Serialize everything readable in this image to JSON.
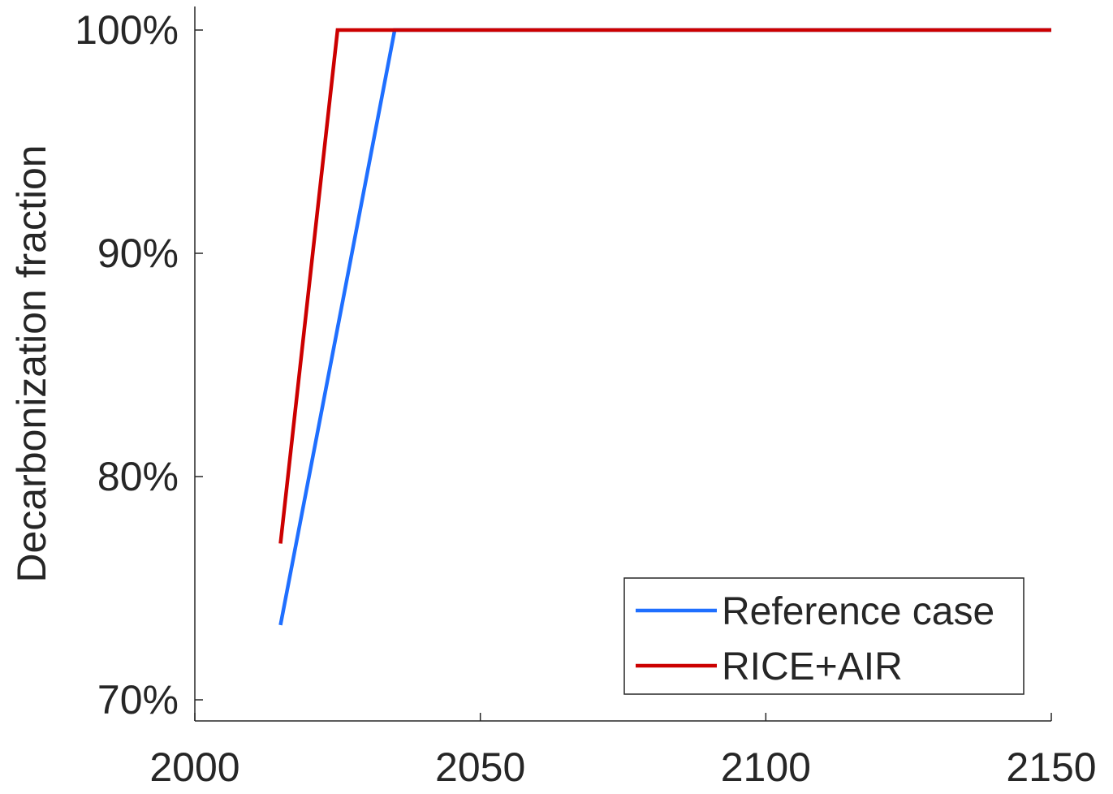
{
  "chart_data": {
    "type": "line",
    "title": "",
    "xlabel": "",
    "ylabel": "Decarbonization fraction",
    "xlim": [
      2000,
      2150
    ],
    "ylim": [
      0.69,
      1.0
    ],
    "xticks": [
      2000,
      2050,
      2100,
      2150
    ],
    "xtick_labels": [
      "2000",
      "2050",
      "2100",
      "2150"
    ],
    "yticks": [
      0.7,
      0.8,
      0.9,
      1.0
    ],
    "ytick_labels": [
      "70%",
      "80%",
      "90%",
      "100%"
    ],
    "grid": false,
    "legend_position": "bottom-right",
    "series": [
      {
        "name": "Reference case",
        "color": "#1f6fff",
        "x": [
          2015,
          2025,
          2035,
          2150
        ],
        "y": [
          0.7335,
          0.8665,
          1.0,
          1.0
        ]
      },
      {
        "name": "RICE+AIR",
        "color": "#cc0000",
        "x": [
          2015,
          2025,
          2150
        ],
        "y": [
          0.77,
          1.0,
          1.0
        ]
      }
    ]
  }
}
